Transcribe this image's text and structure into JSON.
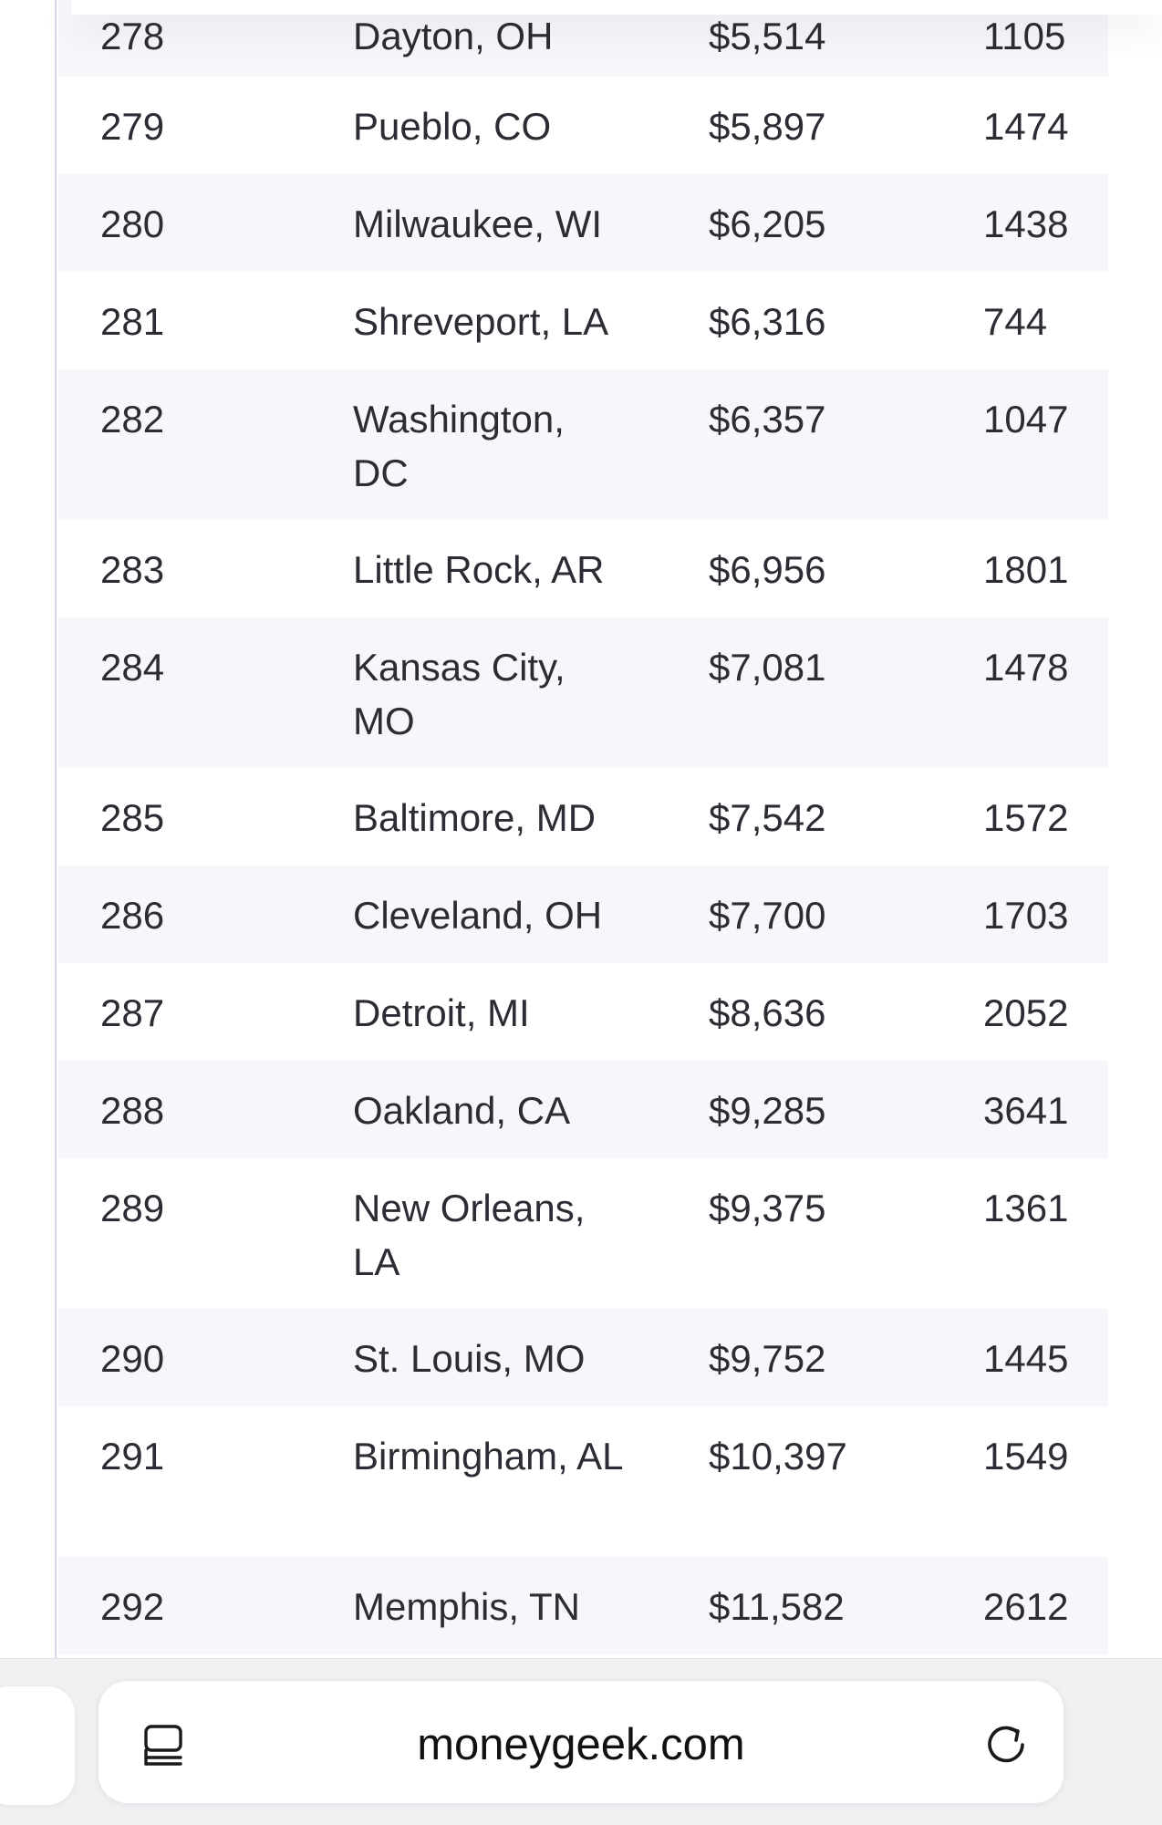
{
  "table": {
    "rows": [
      {
        "rank": "278",
        "city": "Dayton, OH",
        "cost": "$5,514",
        "number": "1105"
      },
      {
        "rank": "279",
        "city": "Pueblo, CO",
        "cost": "$5,897",
        "number": "1474"
      },
      {
        "rank": "280",
        "city": "Milwaukee, WI",
        "cost": "$6,205",
        "number": "1438"
      },
      {
        "rank": "281",
        "city": "Shreveport, LA",
        "cost": "$6,316",
        "number": "744"
      },
      {
        "rank": "282",
        "city": "Washington, DC",
        "cost": "$6,357",
        "number": "1047"
      },
      {
        "rank": "283",
        "city": "Little Rock, AR",
        "cost": "$6,956",
        "number": "1801"
      },
      {
        "rank": "284",
        "city": "Kansas City, MO",
        "cost": "$7,081",
        "number": "1478"
      },
      {
        "rank": "285",
        "city": "Baltimore, MD",
        "cost": "$7,542",
        "number": "1572"
      },
      {
        "rank": "286",
        "city": "Cleveland, OH",
        "cost": "$7,700",
        "number": "1703"
      },
      {
        "rank": "287",
        "city": "Detroit, MI",
        "cost": "$8,636",
        "number": "2052"
      },
      {
        "rank": "288",
        "city": "Oakland, CA",
        "cost": "$9,285",
        "number": "3641"
      },
      {
        "rank": "289",
        "city": "New Orleans, LA",
        "cost": "$9,375",
        "number": "1361"
      },
      {
        "rank": "290",
        "city": "St. Louis, MO",
        "cost": "$9,752",
        "number": "1445"
      },
      {
        "rank": "291",
        "city": "Birmingham, AL",
        "cost": "$10,397",
        "number": "1549"
      },
      {
        "rank": "292",
        "city": "Memphis, TN",
        "cost": "$11,582",
        "number": "2612"
      }
    ]
  },
  "browser": {
    "url": "moneygeek.com",
    "reader_icon": "reader-mode-icon",
    "reload_icon": "reload-icon"
  },
  "colors": {
    "row_alt": "#f6f7fa",
    "text": "#2c2c34",
    "toolbar_bg": "#f0f0f3",
    "rule": "#d4d8ee"
  }
}
